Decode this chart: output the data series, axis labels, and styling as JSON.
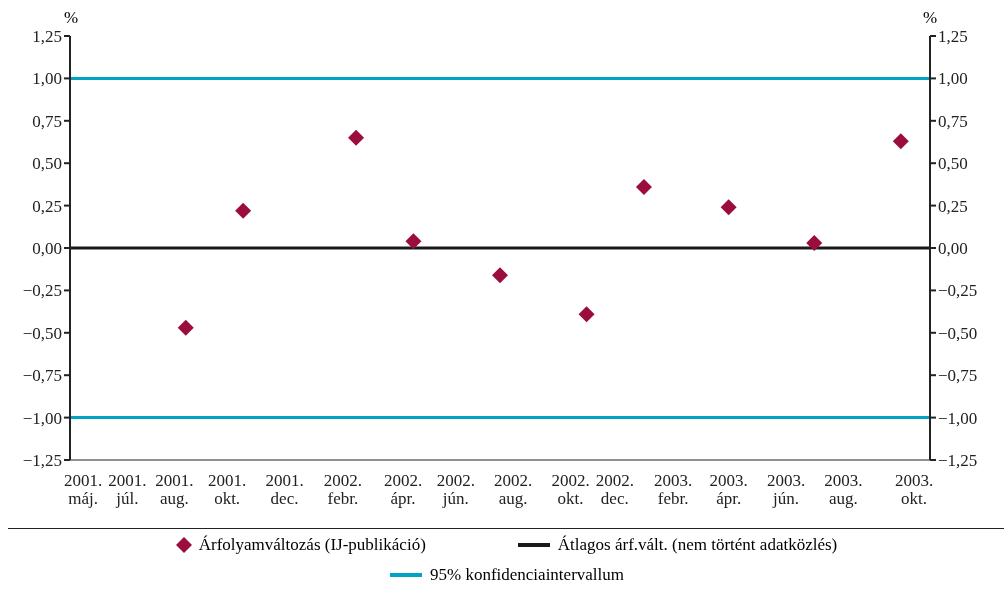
{
  "chart_data": {
    "type": "scatter",
    "ylabel": "%",
    "y2label": "%",
    "x": [
      "2001-09-01",
      "2001-11-01",
      "2002-03-01",
      "2002-05-01",
      "2002-08-01",
      "2002-11-01",
      "2003-01-01",
      "2003-04-01",
      "2003-07-01",
      "2003-10-01"
    ],
    "series": [
      {
        "name": "Árfolyamváltozás (IJ-publikáció)",
        "color": "#9b0d3a",
        "values": [
          -0.47,
          0.22,
          0.65,
          0.04,
          -0.16,
          -0.39,
          0.36,
          0.24,
          0.03,
          0.63
        ]
      }
    ],
    "marker": "diamond",
    "xlim": [
      "2001-05-01",
      "2003-11-01"
    ],
    "xticks": [
      {
        "value": "2001-05-15",
        "label": "2001.\nmáj."
      },
      {
        "value": "2001-07-01",
        "label": "2001.\njúl."
      },
      {
        "value": "2001-08-20",
        "label": "2001.\naug."
      },
      {
        "value": "2001-10-15",
        "label": "2001.\nokt."
      },
      {
        "value": "2001-12-15",
        "label": "2001.\ndec."
      },
      {
        "value": "2002-02-15",
        "label": "2002.\nfebr."
      },
      {
        "value": "2002-04-20",
        "label": "2002.\nápr."
      },
      {
        "value": "2002-06-15",
        "label": "2002.\njún."
      },
      {
        "value": "2002-08-15",
        "label": "2002.\naug."
      },
      {
        "value": "2002-10-15",
        "label": "2002.\nokt."
      },
      {
        "value": "2002-12-01",
        "label": "2002.\ndec."
      },
      {
        "value": "2003-02-01",
        "label": "2003.\nfebr."
      },
      {
        "value": "2003-04-01",
        "label": "2003.\nápr."
      },
      {
        "value": "2003-06-01",
        "label": "2003.\njún."
      },
      {
        "value": "2003-08-01",
        "label": "2003.\naug."
      },
      {
        "value": "2003-10-15",
        "label": "2003.\nokt."
      }
    ],
    "ylim": [
      -1.25,
      1.25
    ],
    "yticks": [
      {
        "value": -1.25,
        "label": "−1,25"
      },
      {
        "value": -1,
        "label": "−1,00"
      },
      {
        "value": -0.75,
        "label": "−0,75"
      },
      {
        "value": -0.5,
        "label": "−0,50"
      },
      {
        "value": -0.25,
        "label": "−0,25"
      },
      {
        "value": 0,
        "label": "0,00"
      },
      {
        "value": 0.25,
        "label": "0,25"
      },
      {
        "value": 0.5,
        "label": "0,50"
      },
      {
        "value": 0.75,
        "label": "0,75"
      },
      {
        "value": 1,
        "label": "1,00"
      },
      {
        "value": 1.25,
        "label": "1,25"
      }
    ],
    "y2lim": [
      -1.25,
      1.25
    ],
    "y2ticks": [
      {
        "value": -1.25,
        "label": "−1,25"
      },
      {
        "value": -1,
        "label": "−1,00"
      },
      {
        "value": -0.75,
        "label": "−0,75"
      },
      {
        "value": -0.5,
        "label": "−0,50"
      },
      {
        "value": -0.25,
        "label": "−0,25"
      },
      {
        "value": 0,
        "label": "0,00"
      },
      {
        "value": 0.25,
        "label": "0,25"
      },
      {
        "value": 0.5,
        "label": "0,50"
      },
      {
        "value": 0.75,
        "label": "0,75"
      },
      {
        "value": 1,
        "label": "1,00"
      },
      {
        "value": 1.25,
        "label": "1,25"
      }
    ],
    "ref_lines": [
      {
        "axis": "y",
        "value": 0,
        "label": "Átlagos árf.vált. (nem történt adatközlés)",
        "color": "#1a1a1a"
      },
      {
        "axis": "y",
        "value": 1,
        "label": "95% konfidenciaintervallum",
        "color": "#00a3c4"
      },
      {
        "axis": "y",
        "value": -1,
        "label": null,
        "color": "#00a3c4"
      }
    ],
    "legend": "bottom"
  }
}
